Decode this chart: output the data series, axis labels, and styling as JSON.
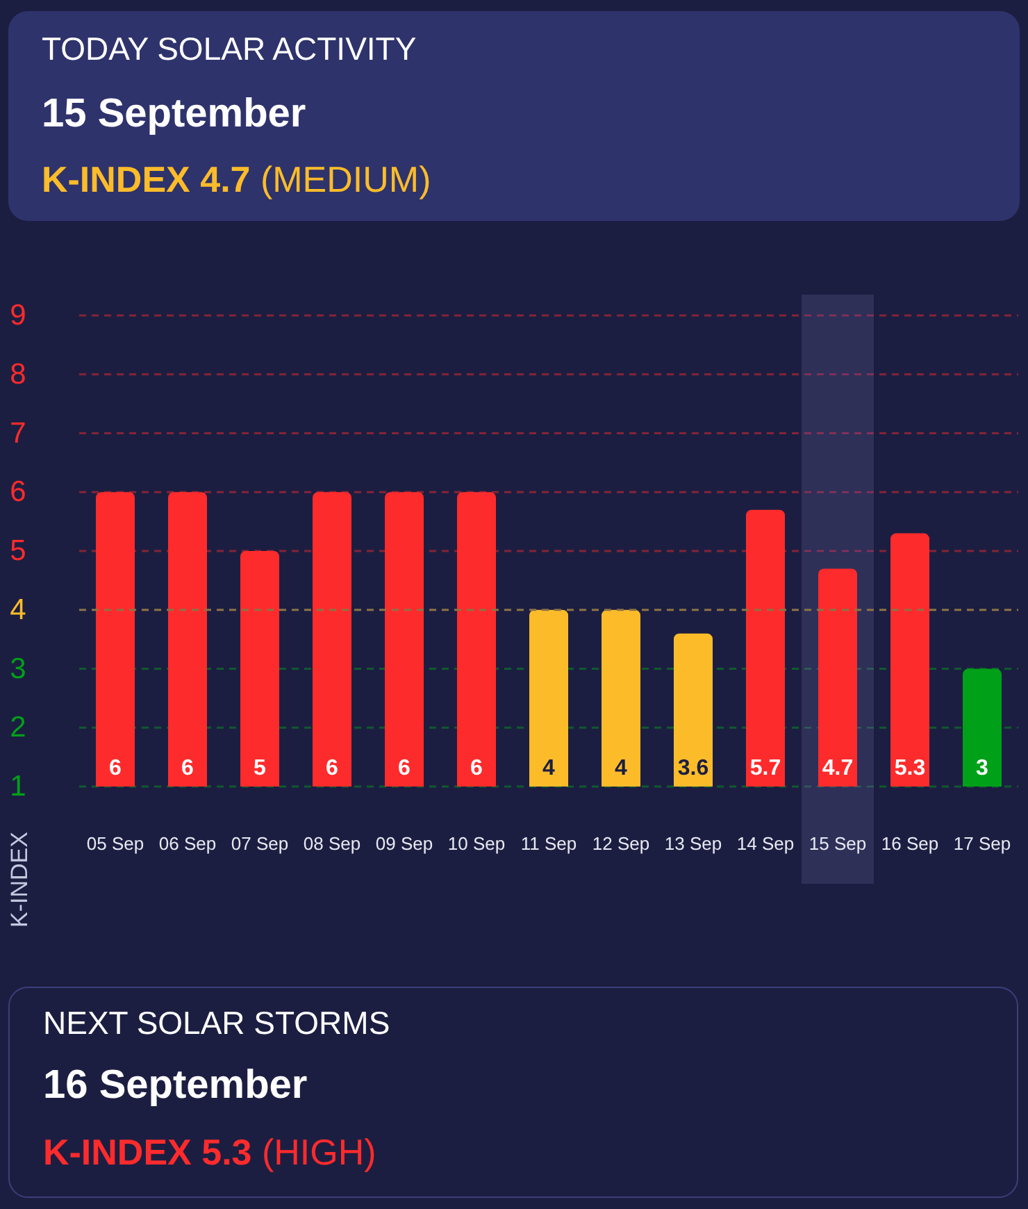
{
  "chart_data": {
    "type": "bar",
    "title": "TODAY SOLAR ACTIVITY",
    "subtitle": "15 September",
    "ylabel": "K-INDEX",
    "annotations": [
      "K-INDEX 4.7 (MEDIUM)",
      "NEXT SOLAR STORMS",
      "16 September",
      "K-INDEX 5.3 (HIGH)"
    ],
    "categories": [
      "05 Sep",
      "06 Sep",
      "07 Sep",
      "08 Sep",
      "09 Sep",
      "10 Sep",
      "11 Sep",
      "12 Sep",
      "13 Sep",
      "14 Sep",
      "15 Sep",
      "16 Sep",
      "17 Sep"
    ],
    "values": [
      6,
      6,
      5,
      6,
      6,
      6,
      4,
      4,
      3.6,
      5.7,
      4.7,
      5.3,
      3
    ],
    "colors": [
      "#fe2b2c",
      "#fe2b2c",
      "#fe2b2c",
      "#fe2b2c",
      "#fe2b2c",
      "#fe2b2c",
      "#fcbc2a",
      "#fcbc2a",
      "#fcbc2a",
      "#fe2b2c",
      "#fe2b2c",
      "#fe2b2c",
      "#00a019"
    ],
    "data_labels": true,
    "ylim": [
      1,
      9
    ],
    "yticks": [
      1,
      2,
      3,
      4,
      5,
      6,
      7,
      8,
      9
    ],
    "grid": "y",
    "ref_lines": [
      {
        "axis": "y",
        "value": 4,
        "color": "#8c7346",
        "line_style": "dashed"
      }
    ],
    "bands": [
      {
        "axis": "x",
        "from": "15 Sep",
        "to": "15 Sep",
        "color": "#2e3058"
      }
    ]
  }
}
